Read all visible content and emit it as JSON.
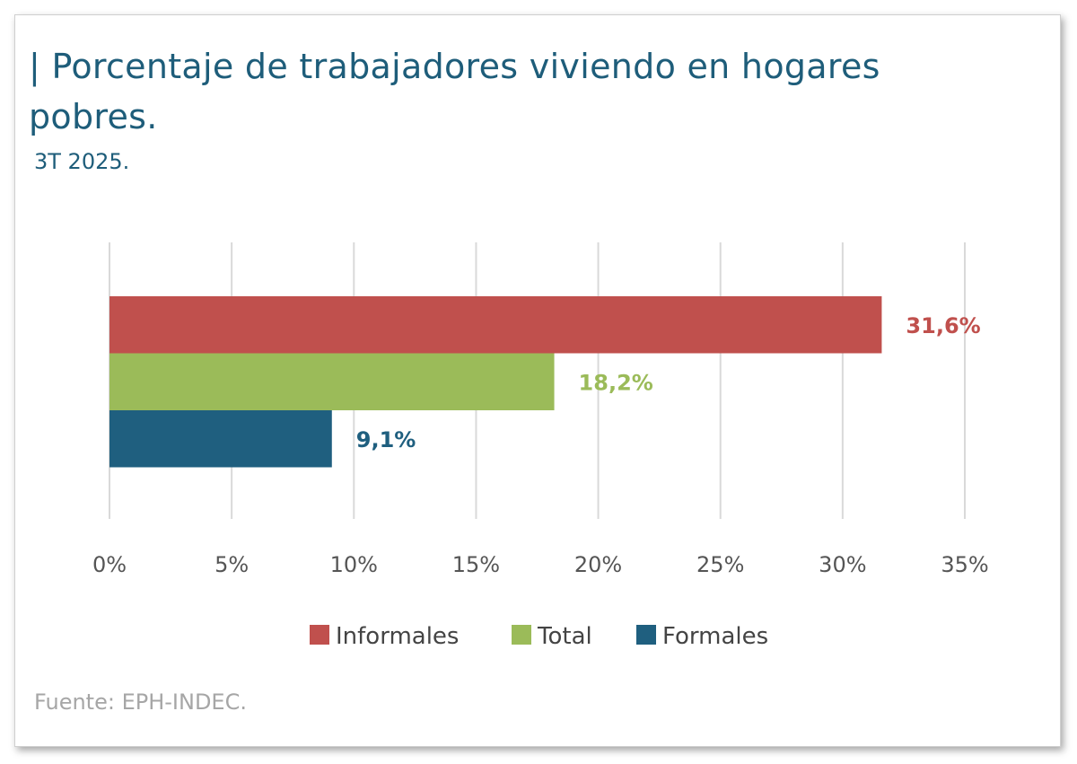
{
  "title": "| Porcentaje de trabajadores viviendo en hogares pobres.",
  "subtitle": "3T 2025.",
  "source": "Fuente: EPH-INDEC.",
  "colors": {
    "title": "#1e5d7a",
    "Informales": "#c0504d",
    "Total": "#9bbb59",
    "Formales": "#1f5f7f",
    "grid": "#d9d9d9"
  },
  "chart_data": {
    "type": "bar",
    "orientation": "horizontal",
    "categories": [
      ""
    ],
    "series": [
      {
        "name": "Informales",
        "values": [
          31.6
        ],
        "label": "31,6%"
      },
      {
        "name": "Total",
        "values": [
          18.2
        ],
        "label": "18,2%"
      },
      {
        "name": "Formales",
        "values": [
          9.1
        ],
        "label": "9,1%"
      }
    ],
    "xlim": [
      0,
      35
    ],
    "xticks": [
      0,
      5,
      10,
      15,
      20,
      25,
      30,
      35
    ],
    "xtick_labels": [
      "0%",
      "5%",
      "10%",
      "15%",
      "20%",
      "25%",
      "30%",
      "35%"
    ],
    "grid": true,
    "legend_position": "bottom"
  }
}
